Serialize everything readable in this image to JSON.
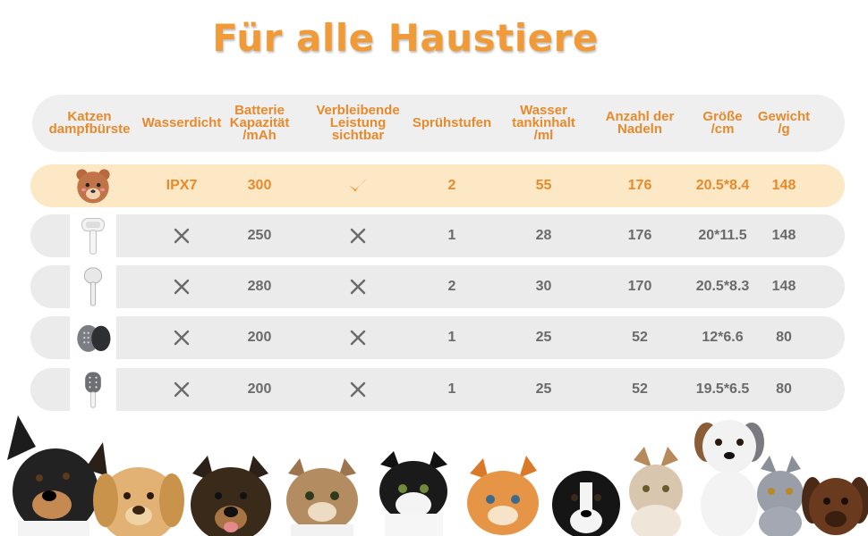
{
  "title": "Für alle Haustiere",
  "headers": {
    "product": [
      "Katzen",
      "dampfbürste"
    ],
    "waterproof": [
      "Wasserdicht"
    ],
    "battery": [
      "Batterie",
      "Kapazität",
      "/mAh"
    ],
    "remaining": [
      "Verbleibende",
      "Leistung",
      "sichtbar"
    ],
    "spray": [
      "Sprühstufen"
    ],
    "tank": [
      "Wasser",
      "tankinhalt",
      "/ml"
    ],
    "needles": [
      "Anzahl der",
      "Nadeln"
    ],
    "size": [
      "Größe",
      "/cm"
    ],
    "weight": [
      "Gewicht",
      "/g"
    ]
  },
  "rows": [
    {
      "icon": "bear-steam-brush-icon",
      "waterproof": "IPX7",
      "waterproof_mark": "text",
      "battery": "300",
      "remaining_mark": "check",
      "spray": "2",
      "tank": "55",
      "needles": "176",
      "size": "20.5*8.4",
      "weight": "148",
      "highlight": true
    },
    {
      "icon": "white-steam-brush-icon",
      "waterproof": "",
      "waterproof_mark": "cross",
      "battery": "250",
      "remaining_mark": "cross",
      "spray": "1",
      "tank": "28",
      "needles": "176",
      "size": "20*11.5",
      "weight": "148",
      "highlight": false
    },
    {
      "icon": "handle-steam-brush-icon",
      "waterproof": "",
      "waterproof_mark": "cross",
      "battery": "280",
      "remaining_mark": "cross",
      "spray": "2",
      "tank": "30",
      "needles": "170",
      "size": "20.5*8.3",
      "weight": "148",
      "highlight": false
    },
    {
      "icon": "grey-steam-brush-icon",
      "waterproof": "",
      "waterproof_mark": "cross",
      "battery": "200",
      "remaining_mark": "cross",
      "spray": "1",
      "tank": "25",
      "needles": "52",
      "size": "12*6.6",
      "weight": "80",
      "highlight": false
    },
    {
      "icon": "paddle-brush-icon",
      "waterproof": "",
      "waterproof_mark": "cross",
      "battery": "200",
      "remaining_mark": "cross",
      "spray": "1",
      "tank": "25",
      "needles": "52",
      "size": "19.5*6.5",
      "weight": "80",
      "highlight": false
    }
  ],
  "colors": {
    "accent": "#f19b38",
    "header_text": "#e68a2c",
    "highlight_row": "#fde8c6",
    "row_bg": "#ebebeb",
    "mark": "#6a6a6a"
  },
  "footer_image": "pets-lineup-illustration"
}
